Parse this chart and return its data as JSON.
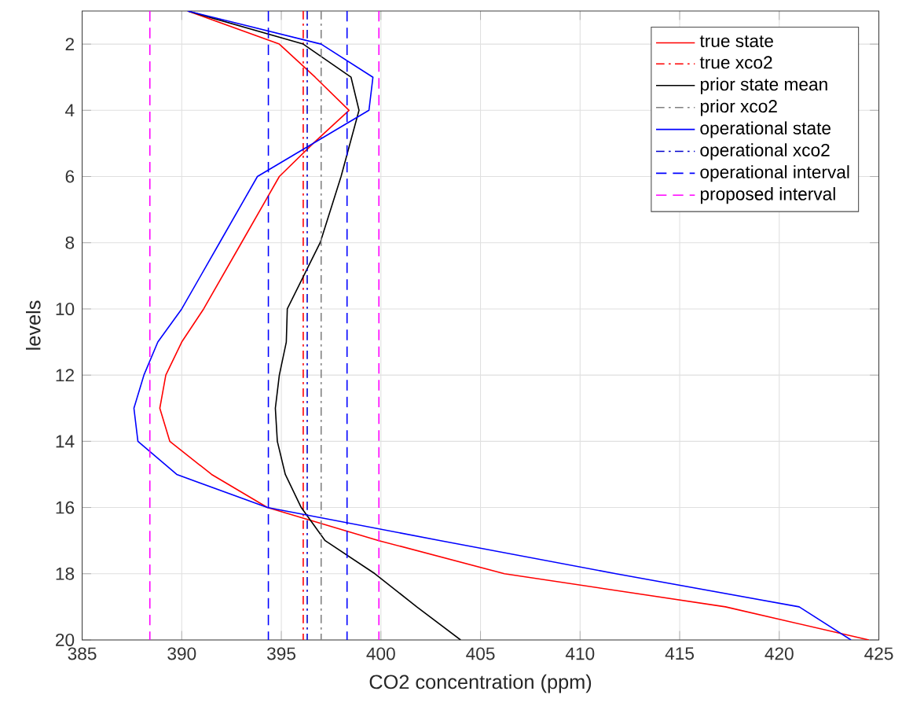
{
  "chart_data": {
    "type": "line",
    "xlabel": "CO2 concentration (ppm)",
    "ylabel": "levels",
    "xlim": [
      385,
      425
    ],
    "xticks": [
      385,
      390,
      395,
      400,
      405,
      410,
      415,
      420,
      425
    ],
    "ylim": [
      20,
      1
    ],
    "yticks": [
      2,
      4,
      6,
      8,
      10,
      12,
      14,
      16,
      18,
      20
    ],
    "grid": true,
    "legend": "top right",
    "series": [
      {
        "name": "true state",
        "color": "#ff0000",
        "line_style": "solid",
        "x": [
          390.3,
          394.9,
          396.7,
          398.4,
          396.6,
          394.9,
          393.0,
          391.1,
          390.0,
          389.2,
          388.9,
          389.4,
          391.5,
          394.3,
          399.9,
          406.2,
          417.3,
          424.5
        ],
        "values": [
          1,
          2,
          3,
          4,
          5,
          6,
          8,
          10,
          11,
          12,
          13,
          14,
          15,
          16,
          17,
          18,
          19,
          20
        ]
      },
      {
        "name": "true xco2",
        "color": "#ff0000",
        "line_style": "dashdot",
        "x": [
          396.1,
          396.1
        ],
        "values": [
          1,
          20
        ]
      },
      {
        "name": "prior state mean",
        "color": "#000000",
        "line_style": "solid",
        "x": [
          390.3,
          396.1,
          398.5,
          398.9,
          398.0,
          396.95,
          395.3,
          395.25,
          394.9,
          394.7,
          394.8,
          395.2,
          396.0,
          397.2,
          399.7,
          401.8,
          404.0
        ],
        "values": [
          1,
          2,
          3,
          4,
          6,
          8,
          10,
          11,
          12,
          13,
          14,
          15,
          16,
          17,
          18,
          19,
          20
        ]
      },
      {
        "name": "prior xco2",
        "color": "#808080",
        "line_style": "dashdot",
        "x": [
          397.0,
          397.0
        ],
        "values": [
          1,
          20
        ]
      },
      {
        "name": "operational state",
        "color": "#0000ff",
        "line_style": "solid",
        "x": [
          390.3,
          397.0,
          399.6,
          399.4,
          393.8,
          391.9,
          390.0,
          388.8,
          388.1,
          387.6,
          387.8,
          389.75,
          394.3,
          403.0,
          411.8,
          421.0,
          423.6
        ],
        "values": [
          1,
          2,
          3,
          4,
          6,
          8,
          10,
          11,
          12,
          13,
          14,
          15,
          16,
          17,
          18,
          19,
          20
        ]
      },
      {
        "name": "operational xco2",
        "color": "#0000cc",
        "line_style": "dashdot",
        "x": [
          396.3,
          396.3
        ],
        "values": [
          1,
          20
        ]
      },
      {
        "name": "operational interval",
        "color": "#0000ff",
        "line_style": "dashed",
        "x": [
          394.35,
          394.35,
          null,
          398.3,
          398.3
        ],
        "values": [
          1,
          20,
          null,
          1,
          20
        ]
      },
      {
        "name": "proposed interval",
        "color": "#ff00ff",
        "line_style": "dashed",
        "x": [
          388.4,
          388.4,
          null,
          399.9,
          399.9
        ],
        "values": [
          1,
          20,
          null,
          1,
          20
        ]
      }
    ]
  }
}
